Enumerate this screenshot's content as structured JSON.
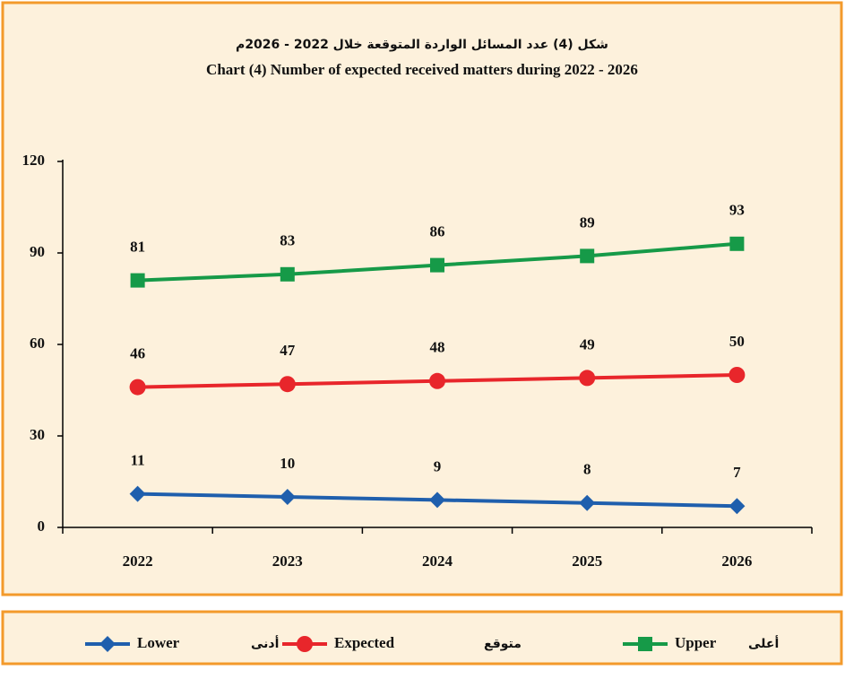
{
  "chart_data": {
    "type": "line",
    "title_ar": "شكل (4) عدد المسائل الواردة المتوقعة خلال 2022 - 2026م",
    "title": "Chart (4) Number of expected received matters during  2022 - 2026",
    "categories": [
      "2022",
      "2023",
      "2024",
      "2025",
      "2026"
    ],
    "series": [
      {
        "name": "Lower",
        "name_ar": "أدنى",
        "color": "#1f5fad",
        "marker": "diamond",
        "values": [
          11,
          10,
          9,
          8,
          7
        ]
      },
      {
        "name": "Expected",
        "name_ar": "متوقع",
        "color": "#e8262b",
        "marker": "circle",
        "values": [
          46,
          47,
          48,
          49,
          50
        ]
      },
      {
        "name": "Upper",
        "name_ar": "أعلى",
        "color": "#169a48",
        "marker": "square",
        "values": [
          81,
          83,
          86,
          89,
          93
        ]
      }
    ],
    "ylim": [
      0,
      120
    ],
    "yticks": [
      0,
      30,
      60,
      90,
      120
    ],
    "grid": false
  }
}
